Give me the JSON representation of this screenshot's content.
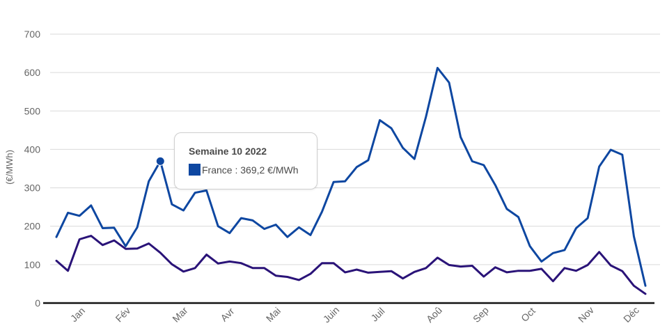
{
  "chart_data": {
    "type": "line",
    "ylabel": "(€/MWh)",
    "ylim": [
      0,
      700
    ],
    "yticks": [
      0,
      100,
      200,
      300,
      400,
      500,
      600,
      700
    ],
    "x": [
      1,
      2,
      3,
      4,
      5,
      6,
      7,
      8,
      9,
      10,
      11,
      12,
      13,
      14,
      15,
      16,
      17,
      18,
      19,
      20,
      21,
      22,
      23,
      24,
      25,
      26,
      27,
      28,
      29,
      30,
      31,
      32,
      33,
      34,
      35,
      36,
      37,
      38,
      39,
      40,
      41,
      42,
      43,
      44,
      45,
      46,
      47,
      48,
      49,
      50,
      51,
      52
    ],
    "month_labels": [
      "Jan",
      "Fév",
      "Mar",
      "Avr",
      "Mai",
      "Juin",
      "Juil",
      "Aoû",
      "Sep",
      "Oct",
      "Nov",
      "Déc"
    ],
    "grid": true,
    "series": [
      {
        "name": "France",
        "color": "#0e47a1",
        "values": [
          172,
          235,
          227,
          254,
          195,
          196,
          148,
          197,
          317,
          369.2,
          257,
          241,
          287,
          293,
          200,
          182,
          221,
          215,
          193,
          204,
          172,
          197,
          177,
          238,
          315,
          317,
          354,
          372,
          476,
          455,
          404,
          375,
          485,
          612,
          574,
          432,
          369,
          359,
          307,
          245,
          224,
          148,
          108,
          130,
          138,
          195,
          221,
          355,
          399,
          386,
          174,
          45
        ]
      },
      {
        "name": "",
        "color": "#2a1378",
        "values": [
          110,
          84,
          166,
          175,
          151,
          163,
          141,
          142,
          155,
          131,
          101,
          82,
          91,
          126,
          103,
          108,
          104,
          91,
          91,
          71,
          68,
          60,
          76,
          104,
          104,
          80,
          87,
          79,
          81,
          83,
          64,
          81,
          91,
          118,
          99,
          95,
          97,
          69,
          93,
          80,
          84,
          84,
          89,
          57,
          91,
          84,
          99,
          133,
          98,
          83,
          45,
          24
        ]
      }
    ]
  },
  "tooltip": {
    "title": "Semaine 10 2022",
    "series_name": "France",
    "text": "France : 369,2 €/MWh",
    "swatch_color": "#0e47a1",
    "point_index": 9
  }
}
